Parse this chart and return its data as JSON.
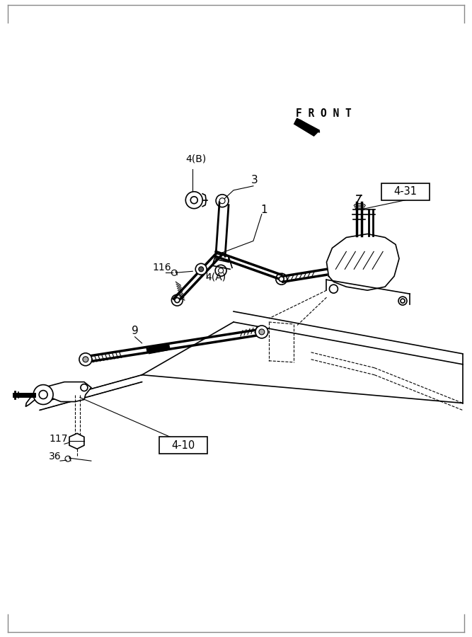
{
  "background_color": "#ffffff",
  "line_color": "#000000",
  "gray_color": "#888888",
  "labels": {
    "front": "FRONT",
    "part_1": "1",
    "part_3": "3",
    "part_4A": "4(A)",
    "part_4B": "4(B)",
    "part_9": "9",
    "part_36": "36",
    "part_116": "116",
    "part_117": "117",
    "ref_431": "4-31",
    "ref_410": "4-10"
  }
}
